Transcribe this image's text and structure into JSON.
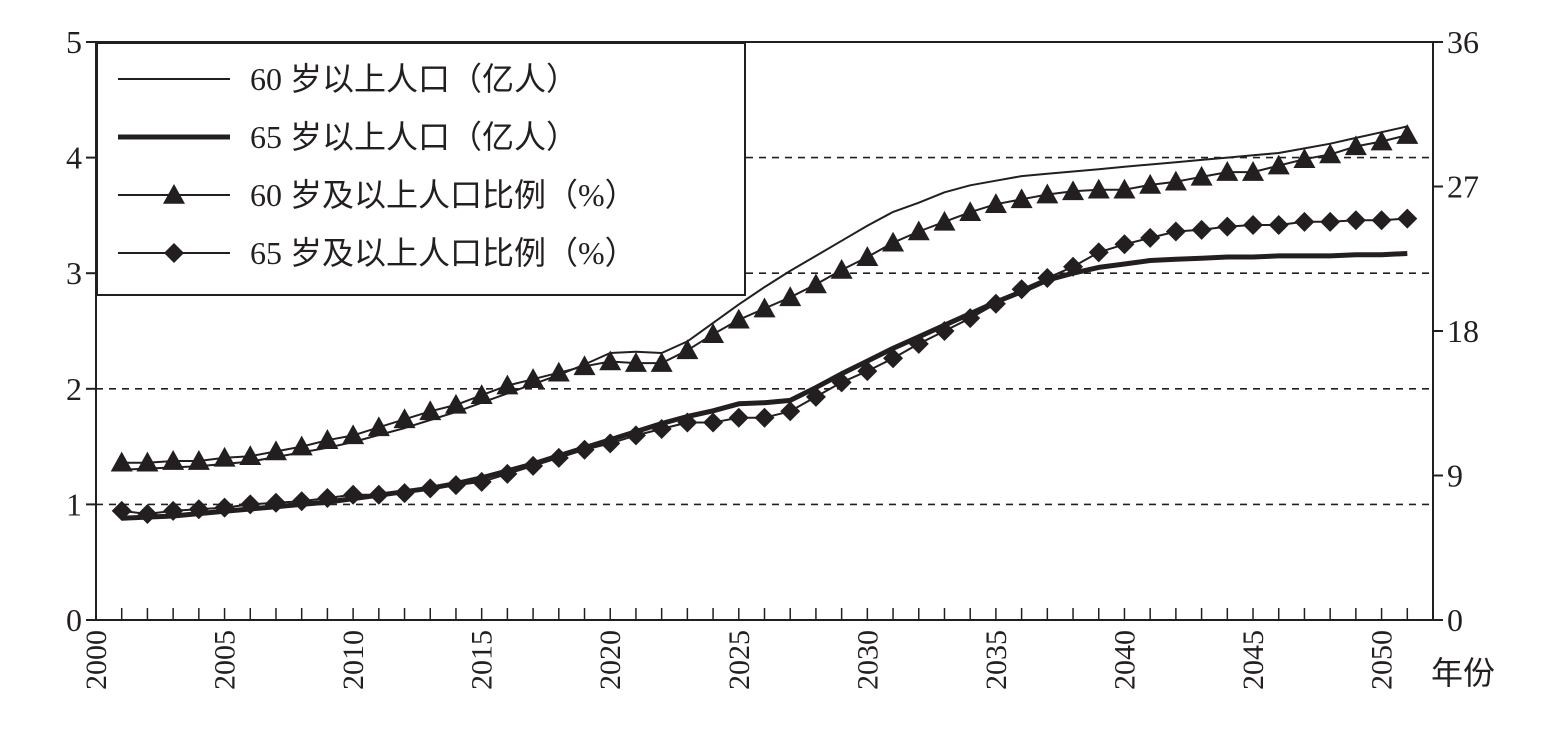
{
  "chart_data": {
    "type": "line",
    "title": "",
    "xlabel": "年份",
    "ylabel_left": "",
    "ylabel_right": "",
    "x_range": [
      2000,
      2052
    ],
    "ylim_left": [
      0,
      5
    ],
    "ylim_right": [
      0,
      36
    ],
    "left_ticks": [
      "0",
      "1",
      "2",
      "3",
      "4",
      "5"
    ],
    "right_ticks": [
      "0",
      "9",
      "18",
      "27",
      "36"
    ],
    "x_ticks": [
      "2000",
      "2005",
      "2010",
      "2015",
      "2020",
      "2025",
      "2030",
      "2035",
      "2040",
      "2045",
      "2050"
    ],
    "grid": "horizontal dashed at left-axis 1, 2, 3, 4",
    "legend_position": "top-left",
    "x": [
      2001,
      2002,
      2003,
      2004,
      2005,
      2006,
      2007,
      2008,
      2009,
      2010,
      2011,
      2012,
      2013,
      2014,
      2015,
      2016,
      2017,
      2018,
      2019,
      2020,
      2021,
      2022,
      2023,
      2024,
      2025,
      2026,
      2027,
      2028,
      2029,
      2030,
      2031,
      2032,
      2033,
      2034,
      2035,
      2036,
      2037,
      2038,
      2039,
      2040,
      2041,
      2042,
      2043,
      2044,
      2045,
      2046,
      2047,
      2048,
      2049,
      2050,
      2051
    ],
    "series": [
      {
        "name": "60 岁以上人口（亿人）",
        "axis": "left",
        "style": "thin-line",
        "values": [
          1.3,
          1.31,
          1.32,
          1.33,
          1.35,
          1.37,
          1.41,
          1.45,
          1.49,
          1.54,
          1.6,
          1.66,
          1.73,
          1.8,
          1.88,
          1.96,
          2.04,
          2.12,
          2.21,
          2.31,
          2.32,
          2.31,
          2.41,
          2.57,
          2.73,
          2.88,
          3.02,
          3.15,
          3.28,
          3.41,
          3.53,
          3.61,
          3.7,
          3.76,
          3.8,
          3.84,
          3.86,
          3.88,
          3.9,
          3.92,
          3.94,
          3.96,
          3.98,
          4.0,
          4.02,
          4.04,
          4.08,
          4.12,
          4.17,
          4.22,
          4.27
        ]
      },
      {
        "name": "65 岁以上人口（亿人）",
        "axis": "left",
        "style": "thick-line",
        "values": [
          0.88,
          0.89,
          0.9,
          0.92,
          0.94,
          0.96,
          0.98,
          1.0,
          1.02,
          1.05,
          1.08,
          1.11,
          1.14,
          1.18,
          1.23,
          1.29,
          1.35,
          1.42,
          1.49,
          1.56,
          1.63,
          1.7,
          1.76,
          1.81,
          1.87,
          1.88,
          1.9,
          2.01,
          2.13,
          2.24,
          2.35,
          2.45,
          2.55,
          2.65,
          2.75,
          2.84,
          2.94,
          3.0,
          3.05,
          3.08,
          3.11,
          3.12,
          3.13,
          3.14,
          3.14,
          3.15,
          3.15,
          3.15,
          3.16,
          3.16,
          3.17
        ]
      },
      {
        "name": "60 岁及以上人口比例（%）",
        "axis": "right",
        "style": "line-triangle",
        "values": [
          9.8,
          9.8,
          9.9,
          9.9,
          10.1,
          10.2,
          10.5,
          10.8,
          11.2,
          11.5,
          12.0,
          12.5,
          13.0,
          13.4,
          14.0,
          14.6,
          15.0,
          15.4,
          15.8,
          16.1,
          16.0,
          16.0,
          16.8,
          17.8,
          18.7,
          19.4,
          20.1,
          20.9,
          21.8,
          22.6,
          23.5,
          24.2,
          24.8,
          25.4,
          25.9,
          26.2,
          26.5,
          26.7,
          26.8,
          26.8,
          27.1,
          27.3,
          27.6,
          27.9,
          27.9,
          28.3,
          28.7,
          29.0,
          29.5,
          29.8,
          30.2
        ]
      },
      {
        "name": "65 岁及以上人口比例（%）",
        "axis": "right",
        "style": "line-diamond",
        "values": [
          6.8,
          6.6,
          6.8,
          6.9,
          7.0,
          7.2,
          7.3,
          7.4,
          7.6,
          7.8,
          7.8,
          7.9,
          8.2,
          8.4,
          8.6,
          9.1,
          9.6,
          10.1,
          10.6,
          11.0,
          11.5,
          11.9,
          12.3,
          12.3,
          12.6,
          12.6,
          13.0,
          13.9,
          14.8,
          15.5,
          16.3,
          17.2,
          18.0,
          18.8,
          19.7,
          20.6,
          21.3,
          22.0,
          22.9,
          23.4,
          23.8,
          24.2,
          24.3,
          24.5,
          24.6,
          24.6,
          24.8,
          24.8,
          24.9,
          24.9,
          25.0
        ]
      }
    ]
  },
  "colors": {
    "ink": "#231f20",
    "grid": "#231f20",
    "background": "#ffffff"
  }
}
